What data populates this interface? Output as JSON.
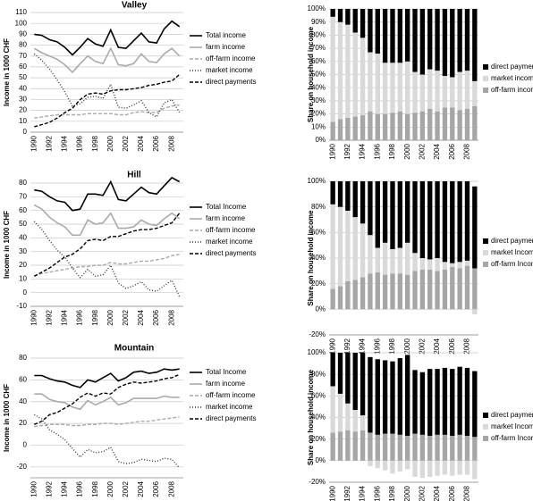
{
  "chart_data": [
    {
      "type": "line",
      "title": "Valley",
      "y_label": "Income in 1000 CHF",
      "categories": [
        "1990",
        null,
        "1992",
        null,
        "1994",
        null,
        "1996",
        null,
        "1998",
        null,
        "2000",
        null,
        "2002",
        null,
        "2004",
        null,
        "2006",
        null,
        "2008",
        null
      ],
      "ylim": [
        0,
        110
      ],
      "yticks": [
        0,
        10,
        20,
        30,
        40,
        50,
        60,
        70,
        80,
        90,
        100,
        110
      ],
      "grid": true,
      "series": [
        {
          "name": "Total income",
          "color": "#000000",
          "style": "solid",
          "values": [
            90,
            89,
            85,
            83,
            78,
            71,
            78,
            86,
            81,
            79,
            94,
            78,
            77,
            84,
            91,
            83,
            82,
            95,
            102,
            97
          ]
        },
        {
          "name": "farm income",
          "color": "#aaaaaa",
          "style": "solid",
          "values": [
            77,
            73,
            70,
            67,
            62,
            55,
            63,
            70,
            65,
            63,
            77,
            62,
            61,
            63,
            72,
            65,
            64,
            72,
            77,
            70
          ]
        },
        {
          "name": "off-farm income",
          "color": "#aaaaaa",
          "style": "dashed",
          "values": [
            13,
            14,
            15,
            16,
            16,
            16,
            16,
            17,
            17,
            17,
            17,
            16,
            16,
            18,
            19,
            18,
            18,
            22,
            24,
            25
          ]
        },
        {
          "name": "market income",
          "color": "#333333",
          "style": "dotted",
          "values": [
            72,
            66,
            58,
            48,
            37,
            24,
            26,
            32,
            33,
            31,
            44,
            23,
            22,
            25,
            29,
            18,
            14,
            27,
            30,
            18
          ]
        },
        {
          "name": "direct payments",
          "color": "#000000",
          "style": "dashed",
          "values": [
            5,
            7,
            9,
            13,
            18,
            22,
            30,
            35,
            36,
            35,
            38,
            39,
            39,
            40,
            41,
            43,
            44,
            46,
            47,
            53
          ]
        }
      ]
    },
    {
      "type": "stacked_bar",
      "y_label": "Share on household income",
      "categories": [
        "1990",
        null,
        "1992",
        null,
        "1994",
        null,
        "1996",
        null,
        "1998",
        null,
        "2000",
        null,
        "2002",
        null,
        "2004",
        null,
        "2006",
        null,
        "2008",
        null
      ],
      "ylim": [
        0,
        100
      ],
      "yticks": [
        {
          "value": 0,
          "label": "0%"
        },
        {
          "value": 10,
          "label": "10%"
        },
        {
          "value": 20,
          "label": "20%"
        },
        {
          "value": 30,
          "label": "30%"
        },
        {
          "value": 40,
          "label": "40%"
        },
        {
          "value": 50,
          "label": "50%"
        },
        {
          "value": 60,
          "label": "60%"
        },
        {
          "value": 70,
          "label": "70%"
        },
        {
          "value": 80,
          "label": "80%"
        },
        {
          "value": 90,
          "label": "90%"
        },
        {
          "value": 100,
          "label": "100%"
        }
      ],
      "grid": true,
      "series": [
        {
          "name": "off-farm income",
          "color": "#a6a6a6",
          "values": [
            14,
            16,
            17,
            18,
            19,
            22,
            20,
            20,
            21,
            22,
            20,
            21,
            22,
            24,
            22,
            25,
            25,
            23,
            24,
            26
          ]
        },
        {
          "name": "market income",
          "color": "#d9d9d9",
          "values": [
            80,
            74,
            71,
            64,
            59,
            45,
            46,
            39,
            38,
            37,
            40,
            31,
            28,
            30,
            31,
            24,
            23,
            29,
            29,
            19
          ]
        },
        {
          "name": "direct payments",
          "color": "#000000",
          "values": [
            6,
            10,
            12,
            18,
            22,
            33,
            34,
            41,
            41,
            41,
            40,
            48,
            50,
            46,
            47,
            51,
            52,
            48,
            47,
            55
          ]
        }
      ]
    },
    {
      "type": "line",
      "title": "Hill",
      "y_label": "Income in 1000 CHF",
      "categories": [
        "1990",
        null,
        "1992",
        null,
        "1994",
        null,
        "1996",
        null,
        "1998",
        null,
        "2000",
        null,
        "2002",
        null,
        "2004",
        null,
        "2006",
        null,
        "2008",
        null
      ],
      "ylim": [
        -10,
        80
      ],
      "yticks": [
        -10,
        0,
        10,
        20,
        30,
        40,
        50,
        60,
        70,
        80
      ],
      "grid": true,
      "series": [
        {
          "name": "Total Income",
          "color": "#000000",
          "style": "solid",
          "values": [
            75,
            74,
            70,
            67,
            66,
            60,
            61,
            72,
            72,
            71,
            81,
            68,
            67,
            72,
            77,
            73,
            72,
            78,
            84,
            81
          ]
        },
        {
          "name": "farm income",
          "color": "#aaaaaa",
          "style": "solid",
          "values": [
            64,
            61,
            55,
            51,
            48,
            42,
            42,
            53,
            50,
            51,
            58,
            47,
            47,
            48,
            53,
            50,
            49,
            54,
            58,
            54
          ]
        },
        {
          "name": "off-farm income",
          "color": "#aaaaaa",
          "style": "dashed",
          "values": [
            12,
            14,
            15,
            16,
            17,
            18,
            19,
            19,
            20,
            20,
            22,
            21,
            21,
            22,
            23,
            23,
            24,
            25,
            27,
            28
          ]
        },
        {
          "name": "market income",
          "color": "#333333",
          "style": "dotted",
          "values": [
            52,
            46,
            38,
            31,
            26,
            18,
            11,
            17,
            12,
            13,
            20,
            7,
            3,
            5,
            8,
            2,
            1,
            5,
            9,
            -3
          ]
        },
        {
          "name": "direct payments",
          "color": "#000000",
          "style": "dashed",
          "values": [
            12,
            15,
            18,
            22,
            26,
            28,
            32,
            38,
            39,
            38,
            41,
            41,
            43,
            45,
            46,
            46,
            47,
            49,
            51,
            58
          ]
        }
      ]
    },
    {
      "type": "stacked_bar",
      "y_label": "Share on household income",
      "categories": [
        "1990",
        null,
        "1992",
        null,
        "1994",
        null,
        "1996",
        null,
        "1998",
        null,
        "2000",
        null,
        "2002",
        null,
        "2004",
        null,
        "2006",
        null,
        "2008",
        null
      ],
      "ylim": [
        -20,
        100
      ],
      "yticks": [
        {
          "value": -20,
          "label": "-20%"
        },
        {
          "value": 0,
          "label": "0%"
        },
        {
          "value": 20,
          "label": "20%"
        },
        {
          "value": 40,
          "label": "40%"
        },
        {
          "value": 60,
          "label": "60%"
        },
        {
          "value": 80,
          "label": "80%"
        },
        {
          "value": 100,
          "label": "100%"
        }
      ],
      "grid": true,
      "series": [
        {
          "name": "off-farm Income",
          "color": "#a6a6a6",
          "values": [
            16,
            18,
            22,
            23,
            25,
            28,
            29,
            27,
            28,
            28,
            27,
            30,
            31,
            31,
            30,
            31,
            33,
            32,
            34,
            32
          ]
        },
        {
          "name": "market Income",
          "color": "#d9d9d9",
          "values": [
            66,
            62,
            55,
            49,
            42,
            30,
            19,
            25,
            19,
            20,
            25,
            14,
            9,
            8,
            10,
            6,
            3,
            5,
            4,
            -4
          ]
        },
        {
          "name": "direct payments",
          "color": "#000000",
          "values": [
            18,
            20,
            23,
            28,
            33,
            42,
            52,
            48,
            53,
            52,
            48,
            56,
            60,
            61,
            60,
            63,
            64,
            63,
            62,
            64
          ]
        }
      ]
    },
    {
      "type": "line",
      "title": "Mountain",
      "y_label": "Income in 1000 CHF",
      "categories": [
        "1990",
        null,
        "1992",
        null,
        "1994",
        null,
        "1996",
        null,
        "1998",
        null,
        "2000",
        null,
        "2002",
        null,
        "2004",
        null,
        "2006",
        null,
        "2008",
        null
      ],
      "ylim": [
        -30,
        80
      ],
      "yticks": [
        -20,
        0,
        20,
        40,
        60,
        80
      ],
      "grid": true,
      "series": [
        {
          "name": "Total Income",
          "color": "#000000",
          "style": "solid",
          "values": [
            64,
            64,
            61,
            59,
            58,
            55,
            53,
            60,
            58,
            62,
            66,
            59,
            62,
            67,
            68,
            66,
            67,
            70,
            69,
            70
          ]
        },
        {
          "name": "farm income",
          "color": "#aaaaaa",
          "style": "solid",
          "values": [
            47,
            47,
            42,
            40,
            39,
            35,
            33,
            41,
            37,
            40,
            44,
            37,
            39,
            43,
            43,
            43,
            43,
            45,
            44,
            44
          ]
        },
        {
          "name": "off-farm income",
          "color": "#aaaaaa",
          "style": "dashed",
          "values": [
            17,
            18,
            19,
            19,
            19,
            18,
            18,
            19,
            19,
            20,
            20,
            19,
            20,
            21,
            22,
            22,
            23,
            24,
            25,
            26
          ]
        },
        {
          "name": "market income",
          "color": "#333333",
          "style": "dotted",
          "values": [
            28,
            24,
            14,
            10,
            5,
            -3,
            -11,
            -4,
            -7,
            -6,
            -2,
            -15,
            -17,
            -16,
            -13,
            -14,
            -15,
            -12,
            -13,
            -21
          ]
        },
        {
          "name": "direct payments",
          "color": "#000000",
          "style": "dashed",
          "values": [
            19,
            22,
            28,
            30,
            34,
            38,
            44,
            48,
            45,
            48,
            47,
            53,
            56,
            58,
            57,
            58,
            59,
            61,
            62,
            65
          ]
        }
      ]
    },
    {
      "type": "stacked_bar",
      "y_label": "Share on household income",
      "categories": [
        "1990",
        null,
        "1992",
        null,
        "1994",
        null,
        "1996",
        null,
        "1998",
        null,
        "2000",
        null,
        "2002",
        null,
        "2004",
        null,
        "2006",
        null,
        "2008",
        null
      ],
      "ylim": [
        -20,
        100
      ],
      "yticks": [
        {
          "value": -20,
          "label": "-20%"
        },
        {
          "value": 0,
          "label": "0%"
        },
        {
          "value": 20,
          "label": "20%"
        },
        {
          "value": 40,
          "label": "40%"
        },
        {
          "value": 60,
          "label": "60%"
        },
        {
          "value": 80,
          "label": "80%"
        },
        {
          "value": 100,
          "label": "100%"
        }
      ],
      "grid": true,
      "series": [
        {
          "name": "off-farm Income",
          "color": "#a6a6a6",
          "values": [
            26,
            27,
            28,
            27,
            28,
            26,
            24,
            25,
            25,
            24,
            23,
            25,
            24,
            23,
            24,
            24,
            23,
            24,
            23,
            22
          ]
        },
        {
          "name": "market Income",
          "color": "#d9d9d9",
          "values": [
            43,
            35,
            25,
            20,
            14,
            -5,
            -7,
            -9,
            -12,
            -10,
            -8,
            -15,
            -16,
            -15,
            -14,
            -13,
            -14,
            -13,
            -13,
            -17
          ]
        },
        {
          "name": "direct payments",
          "color": "#000000",
          "values": [
            31,
            38,
            47,
            53,
            58,
            70,
            70,
            68,
            67,
            71,
            75,
            59,
            58,
            62,
            61,
            62,
            62,
            63,
            63,
            61
          ]
        }
      ]
    }
  ]
}
